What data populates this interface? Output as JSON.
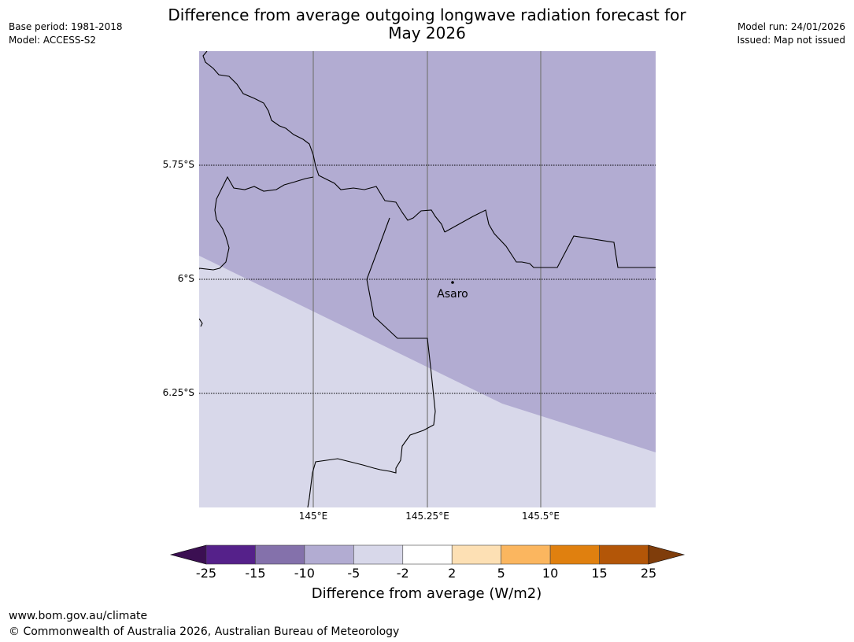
{
  "header": {
    "title_line1": "Difference from average outgoing longwave radiation forecast for",
    "title_line2": "May 2026",
    "base_period": "Base period: 1981-2018",
    "model": "Model: ACCESS-S2",
    "model_run": "Model run: 24/01/2026",
    "issued": "Issued: Map not issued"
  },
  "map": {
    "lat_labels": [
      "5.75°S",
      "6°S",
      "6.25°S"
    ],
    "lon_labels": [
      "145°E",
      "145.25°E",
      "145.5°E"
    ],
    "place_name": "Asaro",
    "region_colors": {
      "minus10_to_minus5": "#b2acd2",
      "minus5_to_minus2": "#d8d8ea"
    }
  },
  "colorbar": {
    "title": "Difference from average (W/m2)",
    "tick_labels": [
      "-25",
      "-15",
      "-10",
      "-5",
      "-2",
      "2",
      "5",
      "10",
      "15",
      "25"
    ],
    "under_color": "#3b0f52",
    "over_color": "#7f3d0b",
    "bin_colors": [
      "#55218a",
      "#8471ab",
      "#b2acd2",
      "#d8d8ea",
      "#ffffff",
      "#fde0b4",
      "#fbb65f",
      "#e0800f",
      "#b35608"
    ]
  },
  "footer": {
    "url": "www.bom.gov.au/climate",
    "copyright": "© Commonwealth of Australia 2026, Australian Bureau of Meteorology"
  }
}
